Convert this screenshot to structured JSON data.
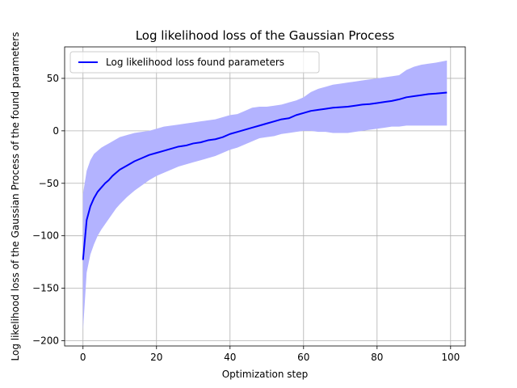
{
  "chart_data": {
    "type": "line",
    "title": "Log likelihood loss of the Gaussian Process",
    "xlabel": "Optimization step",
    "ylabel": "Log likelihood loss of the Gaussian Process of the found parameters",
    "xlim": [
      -5,
      104
    ],
    "ylim": [
      -205,
      80
    ],
    "xticks": [
      0,
      20,
      40,
      60,
      80,
      100
    ],
    "yticks": [
      -200,
      -150,
      -100,
      -50,
      0,
      50
    ],
    "grid": true,
    "legend_position": "top-left",
    "colors": {
      "line": "#0000ff",
      "band": "#b3b3ff"
    },
    "series": [
      {
        "name": "Log likelihood loss found parameters",
        "x": [
          0,
          1,
          2,
          3,
          4,
          5,
          6,
          7,
          8,
          9,
          10,
          12,
          14,
          16,
          18,
          20,
          22,
          24,
          26,
          28,
          30,
          32,
          34,
          36,
          38,
          40,
          42,
          44,
          46,
          48,
          50,
          52,
          54,
          56,
          58,
          60,
          62,
          64,
          66,
          68,
          70,
          72,
          74,
          76,
          78,
          80,
          82,
          84,
          86,
          88,
          90,
          92,
          94,
          96,
          99
        ],
        "mean": [
          -123,
          -85,
          -72,
          -64,
          -58,
          -54,
          -50,
          -47,
          -43,
          -40,
          -37,
          -33,
          -29,
          -26,
          -23,
          -21,
          -19,
          -17,
          -15,
          -14,
          -12,
          -11,
          -9,
          -8,
          -6,
          -3,
          -1,
          1,
          3,
          5,
          7,
          9,
          11,
          12,
          15,
          17,
          19,
          20,
          21,
          22,
          22.5,
          23,
          24,
          25,
          25.5,
          26.5,
          27.5,
          28.5,
          30,
          32,
          33,
          34,
          35,
          35.5,
          36.5
        ],
        "upper": [
          -60,
          -38,
          -28,
          -22,
          -19,
          -16,
          -14,
          -12,
          -10,
          -8,
          -6,
          -4,
          -2,
          -1,
          0,
          2,
          4,
          5,
          6,
          7,
          8,
          9,
          10,
          11,
          13,
          15,
          16,
          19,
          22,
          23,
          23,
          24,
          25,
          27,
          29,
          32,
          37,
          40,
          42,
          44,
          45,
          46,
          47,
          48,
          49,
          50,
          51,
          52,
          53,
          58,
          61,
          63,
          64,
          65,
          67
        ],
        "lower": [
          -190,
          -135,
          -118,
          -108,
          -100,
          -94,
          -89,
          -84,
          -79,
          -74,
          -70,
          -63,
          -57,
          -52,
          -47,
          -43,
          -40,
          -37,
          -34,
          -32,
          -30,
          -28,
          -26,
          -24,
          -21,
          -18,
          -16,
          -13,
          -10,
          -7,
          -6,
          -5,
          -3,
          -2,
          -1,
          0,
          0,
          -1,
          -1,
          -2,
          -2,
          -2,
          -1,
          0,
          1,
          2,
          3,
          4,
          4,
          5,
          5,
          5,
          5,
          5,
          5
        ]
      }
    ]
  }
}
